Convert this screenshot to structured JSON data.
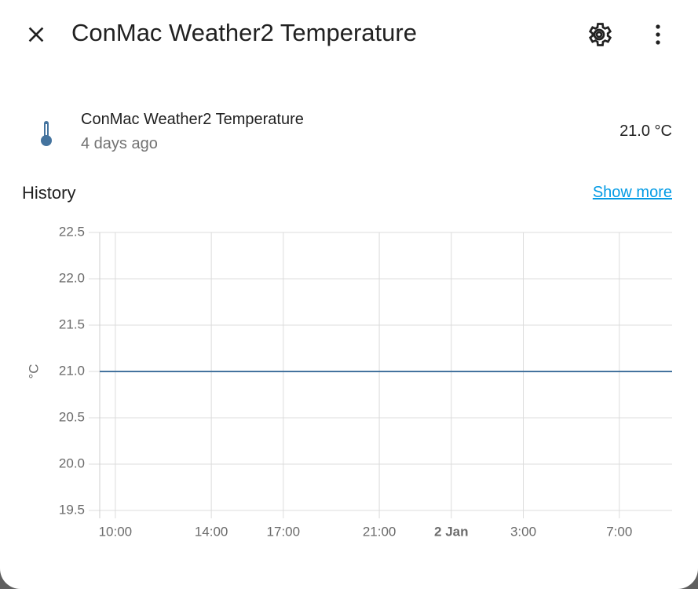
{
  "header": {
    "title": "ConMac Weather2 Temperature"
  },
  "entity": {
    "name": "ConMac Weather2 Temperature",
    "last_changed": "4 days ago",
    "state": "21.0 °C"
  },
  "history": {
    "title": "History",
    "link": "Show more"
  },
  "chart_data": {
    "type": "line",
    "y_label": "°C",
    "x": [
      9.35,
      33.2
    ],
    "values": [
      21,
      21
    ],
    "color": "#44739e",
    "xlim": [
      9.35,
      33.2
    ],
    "xticks": [
      {
        "value": 10,
        "label": "10:00"
      },
      {
        "value": 14,
        "label": "14:00"
      },
      {
        "value": 17,
        "label": "17:00"
      },
      {
        "value": 21,
        "label": "21:00"
      },
      {
        "value": 24,
        "label": "2 Jan"
      },
      {
        "value": 27,
        "label": "3:00"
      },
      {
        "value": 31,
        "label": "7:00"
      }
    ],
    "ylim": [
      19.5,
      22.5
    ],
    "yticks": [
      22.5,
      {
        "value": 22,
        "label": "22.0"
      },
      21.5,
      {
        "value": 21,
        "label": "21.0"
      },
      20.5,
      {
        "value": 20,
        "label": "20.0"
      },
      19.5
    ],
    "grid": true
  }
}
